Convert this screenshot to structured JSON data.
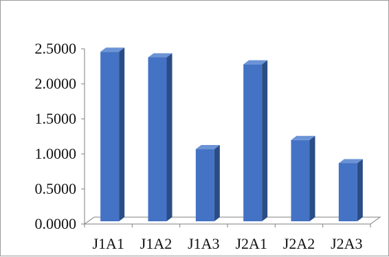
{
  "chart_data": {
    "type": "bar",
    "categories": [
      "J1A1",
      "J1A2",
      "J1A3",
      "J2A1",
      "J2A2",
      "J2A3"
    ],
    "values": [
      2.36,
      2.28,
      0.97,
      2.18,
      1.1,
      0.77
    ],
    "title": "",
    "xlabel": "",
    "ylabel": "",
    "ylim": [
      0,
      2.5
    ],
    "yticks": [
      "0.0000",
      "0.5000",
      "1.0000",
      "1.5000",
      "2.0000",
      "2.5000"
    ],
    "grid": false,
    "legend": "none",
    "bar_color": "#4472c4",
    "bar_side_color": "#2a4d86",
    "bar_top_color": "#6b93d6"
  }
}
